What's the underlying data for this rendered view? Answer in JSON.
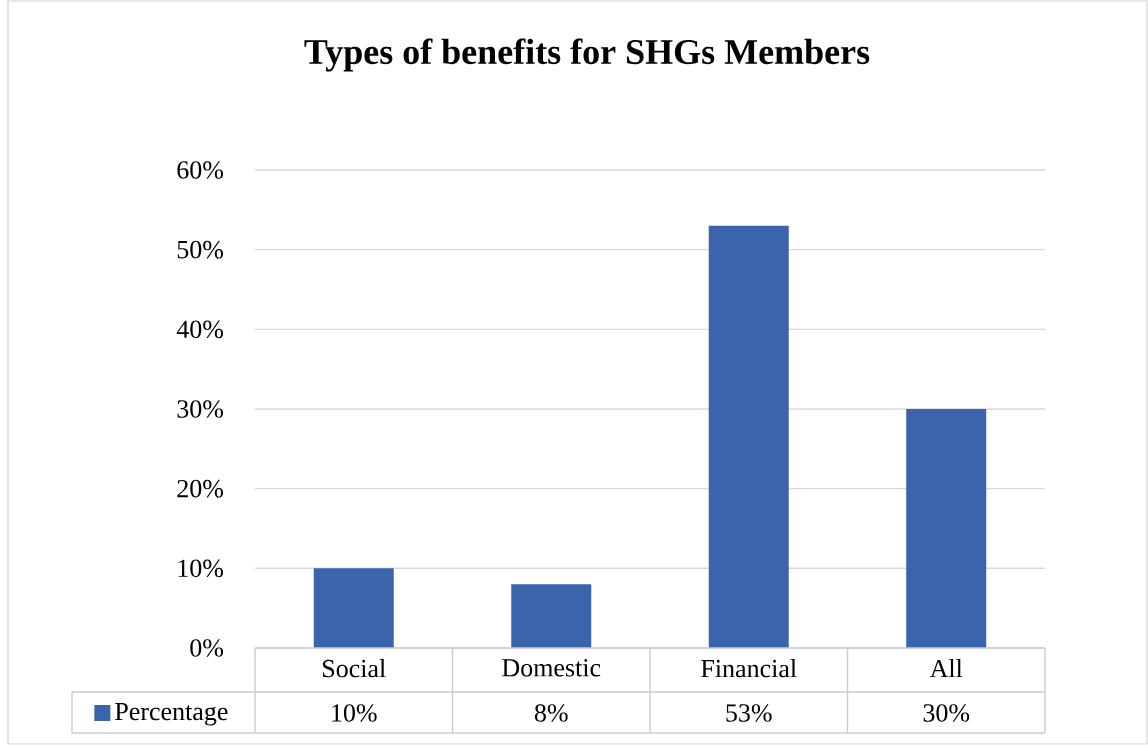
{
  "chart_data": {
    "type": "bar",
    "title": "Types of benefits for SHGs Members",
    "categories": [
      "Social",
      "Domestic",
      "Financial",
      "All"
    ],
    "series": [
      {
        "name": "Percentage",
        "color": "#3b64ad",
        "values": [
          10,
          8,
          53,
          30
        ],
        "value_labels": [
          "10%",
          "8%",
          "53%",
          "30%"
        ]
      }
    ],
    "ylim": [
      0,
      60
    ],
    "yticks": [
      {
        "value": 0,
        "label": "0%"
      },
      {
        "value": 10,
        "label": "10%"
      },
      {
        "value": 20,
        "label": "20%"
      },
      {
        "value": 30,
        "label": "30%"
      },
      {
        "value": 40,
        "label": "40%"
      },
      {
        "value": 50,
        "label": "50%"
      },
      {
        "value": 60,
        "label": "60%"
      }
    ],
    "grid": true,
    "legend": "bottom left"
  }
}
